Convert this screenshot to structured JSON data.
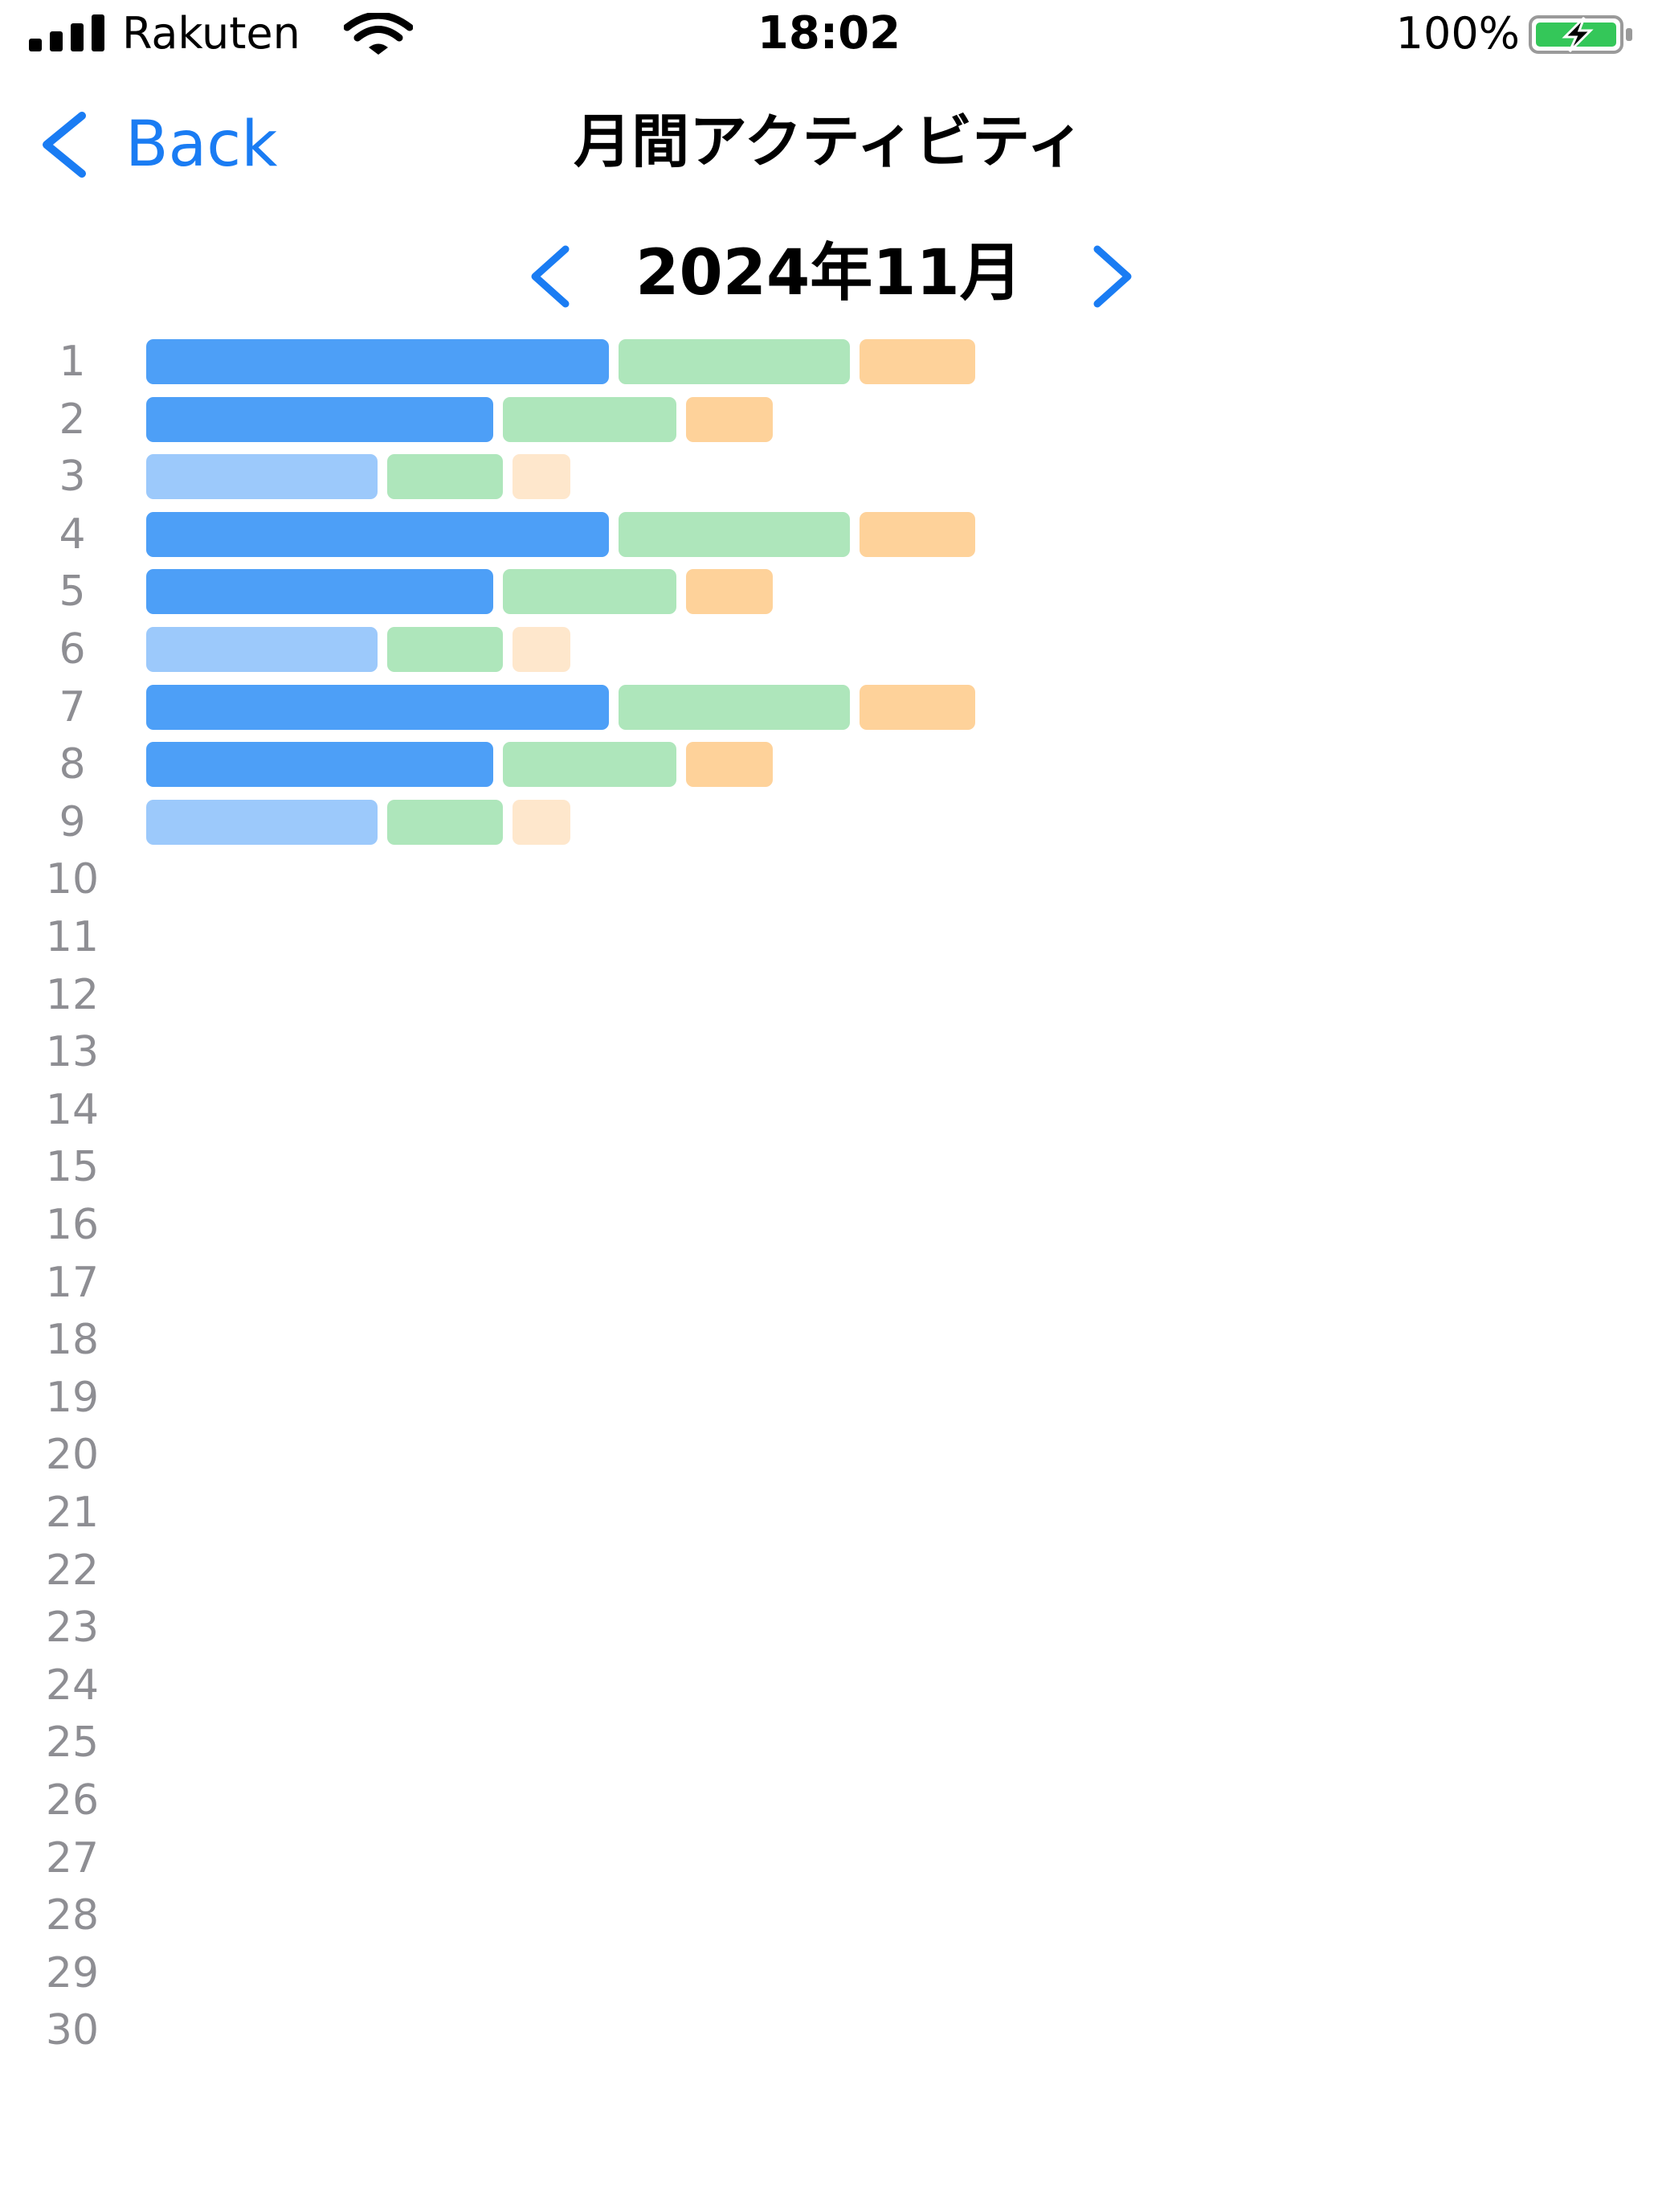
{
  "status_bar": {
    "carrier": "Rakuten",
    "time": "18:02",
    "battery": "100%",
    "icons": [
      "signal-icon",
      "wifi-icon",
      "battery-charging-icon"
    ]
  },
  "nav": {
    "back_label": "Back",
    "title": "月間アクティビティ"
  },
  "month_selector": {
    "label": "2024年11月"
  },
  "colors": {
    "accent": "#1a7cf3",
    "blue": "#4d9ff7",
    "blue_light": "#9cc9fb",
    "green": "#aee6bb",
    "orange": "#fed29a",
    "orange_light": "#fee7cc",
    "day_label": "#8e8e93"
  },
  "chart_data": {
    "type": "bar",
    "stacked": true,
    "orientation": "horizontal",
    "categories": [
      "1",
      "2",
      "3",
      "4",
      "5",
      "6",
      "7",
      "8",
      "9",
      "10",
      "11",
      "12",
      "13",
      "14",
      "15",
      "16",
      "17",
      "18",
      "19",
      "20",
      "21",
      "22",
      "23",
      "24",
      "25",
      "26",
      "27",
      "28",
      "29",
      "30"
    ],
    "series": [
      {
        "color": "#4d9ff7",
        "values": [
          4,
          3,
          2,
          4,
          3,
          2,
          4,
          3,
          2,
          null,
          null,
          null,
          null,
          null,
          null,
          null,
          null,
          null,
          null,
          null,
          null,
          null,
          null,
          null,
          null,
          null,
          null,
          null,
          null,
          null
        ]
      },
      {
        "color": "#aee6bb",
        "values": [
          2,
          1.5,
          1,
          2,
          1.5,
          1,
          2,
          1.5,
          1,
          null,
          null,
          null,
          null,
          null,
          null,
          null,
          null,
          null,
          null,
          null,
          null,
          null,
          null,
          null,
          null,
          null,
          null,
          null,
          null,
          null
        ]
      },
      {
        "color": "#fed29a",
        "values": [
          1,
          0.75,
          0.5,
          1,
          0.75,
          0.5,
          1,
          0.75,
          0.5,
          null,
          null,
          null,
          null,
          null,
          null,
          null,
          null,
          null,
          null,
          null,
          null,
          null,
          null,
          null,
          null,
          null,
          null,
          null,
          null,
          null
        ]
      }
    ],
    "light_rows": [
      "3",
      "6",
      "9"
    ],
    "grid": false,
    "legend": "none"
  }
}
